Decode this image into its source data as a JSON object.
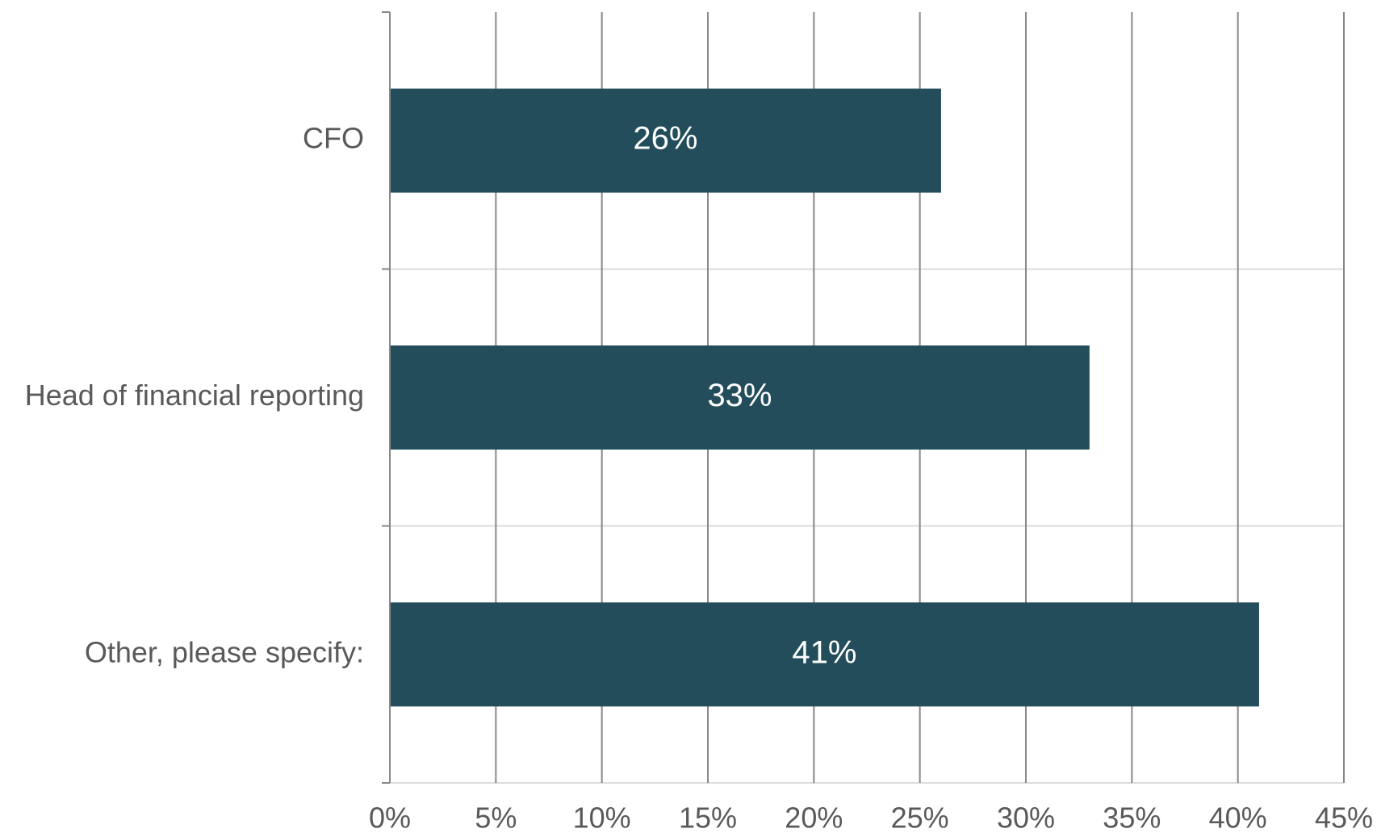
{
  "chart_data": {
    "type": "bar",
    "orientation": "horizontal",
    "categories": [
      "CFO",
      "Head of financial reporting",
      "Other, please specify:"
    ],
    "values": [
      26,
      33,
      41
    ],
    "value_labels": [
      "26%",
      "33%",
      "41%"
    ],
    "color": "#234d5a",
    "xlim": [
      0,
      45
    ],
    "xticks": [
      {
        "value": 0,
        "label": "0%"
      },
      {
        "value": 5,
        "label": "5%"
      },
      {
        "value": 10,
        "label": "10%"
      },
      {
        "value": 15,
        "label": "15%"
      },
      {
        "value": 20,
        "label": "20%"
      },
      {
        "value": 25,
        "label": "25%"
      },
      {
        "value": 30,
        "label": "30%"
      },
      {
        "value": 35,
        "label": "35%"
      },
      {
        "value": 40,
        "label": "40%"
      },
      {
        "value": 45,
        "label": "45%"
      }
    ],
    "grid": true
  }
}
